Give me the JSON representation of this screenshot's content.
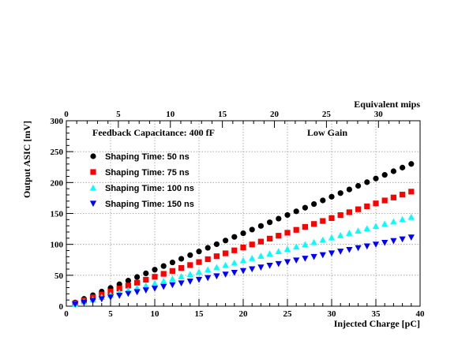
{
  "chart_data": {
    "type": "scatter",
    "xlabel": "Injected Charge [pC]",
    "ylabel": "Output ASIC [mV]",
    "x2label": "Equivalent mips",
    "xlim": [
      0,
      40
    ],
    "ylim": [
      0,
      300
    ],
    "x2lim": [
      0,
      34
    ],
    "grid": true,
    "legend_position": "top-left",
    "x_ticks": [
      0,
      5,
      10,
      15,
      20,
      25,
      30,
      35,
      40
    ],
    "y_ticks": [
      0,
      50,
      100,
      150,
      200,
      250,
      300
    ],
    "x2_ticks": [
      0,
      5,
      10,
      15,
      20,
      25,
      30
    ],
    "annotations": [
      "Feedback Capacitance: 400 fF",
      "Low Gain"
    ],
    "x": [
      1,
      2,
      3,
      4,
      5,
      6,
      7,
      8,
      9,
      10,
      11,
      12,
      13,
      14,
      15,
      16,
      17,
      18,
      19,
      20,
      21,
      22,
      23,
      24,
      25,
      26,
      27,
      28,
      29,
      30,
      31,
      32,
      33,
      34,
      35,
      36,
      37,
      38,
      39
    ],
    "series": [
      {
        "name": "Shaping Time: 50 ns",
        "marker": "circle",
        "color": "#000000",
        "slope": 5.9,
        "values": []
      },
      {
        "name": "Shaping Time: 75 ns",
        "marker": "square",
        "color": "#ff0000",
        "slope": 4.75,
        "values": []
      },
      {
        "name": "Shaping Time: 100 ns",
        "marker": "triangle-up",
        "color": "#00ffff",
        "slope": 3.7,
        "values": []
      },
      {
        "name": "Shaping Time: 150 ns",
        "marker": "triangle-down",
        "color": "#0000ff",
        "slope": 2.85,
        "values": []
      }
    ]
  }
}
